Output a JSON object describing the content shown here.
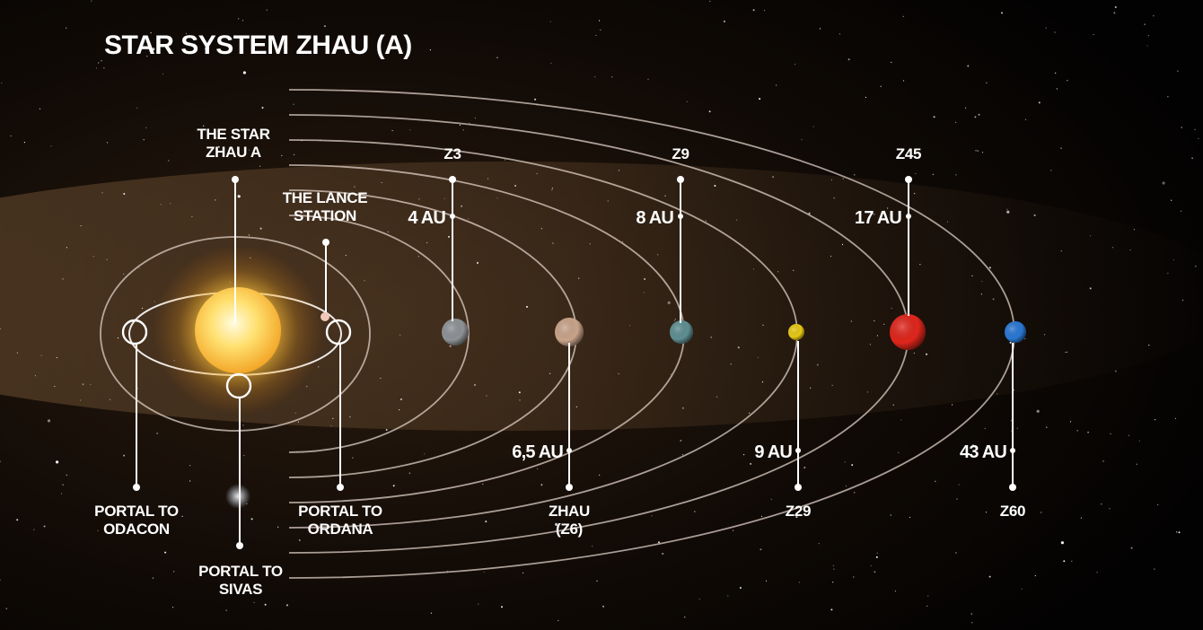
{
  "title": "STAR SYSTEM ZHAU (A)",
  "star": {
    "label_line1": "THE STAR",
    "label_line2": "ZHAU A"
  },
  "station": {
    "label_line1": "THE LANCE",
    "label_line2": "STATION"
  },
  "portals": [
    {
      "id": "odacon",
      "line1": "PORTAL TO",
      "line2": "ODACON"
    },
    {
      "id": "ordana",
      "line1": "PORTAL TO",
      "line2": "ORDANA"
    },
    {
      "id": "sivas",
      "line1": "PORTAL TO",
      "line2": "SIVAS"
    }
  ],
  "planets": [
    {
      "id": "z3",
      "name": "Z3",
      "name2": "",
      "distance": "4 AU",
      "color": "#8e9296"
    },
    {
      "id": "z6",
      "name": "ZHAU",
      "name2": "(Z6)",
      "distance": "6,5 AU",
      "color": "#c9a48a"
    },
    {
      "id": "z9",
      "name": "Z9",
      "name2": "",
      "distance": "8 AU",
      "color": "#5f8f92"
    },
    {
      "id": "z29",
      "name": "Z29",
      "name2": "",
      "distance": "9 AU",
      "color": "#e8c914"
    },
    {
      "id": "z45",
      "name": "Z45",
      "name2": "",
      "distance": "17 AU",
      "color": "#e0261c"
    },
    {
      "id": "z60",
      "name": "Z60",
      "name2": "",
      "distance": "43 AU",
      "color": "#2a78d4"
    }
  ],
  "colors": {
    "background": "#050302",
    "star": "#ffd23c",
    "orbit": "#e4d6cc",
    "label": "#ffffff"
  }
}
